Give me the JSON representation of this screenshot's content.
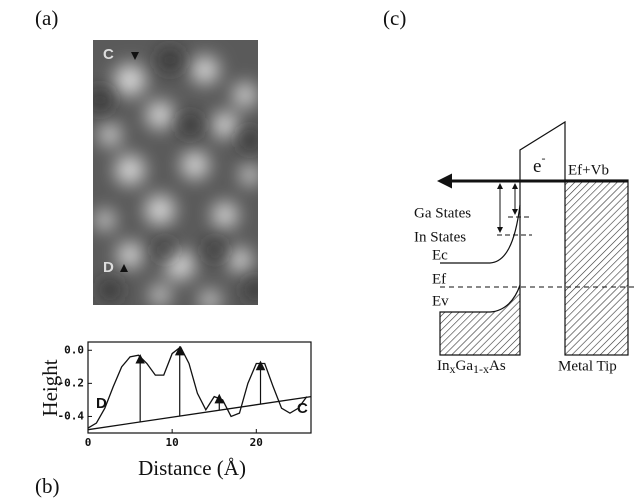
{
  "panel_a": {
    "label": "(a)",
    "marker_top": "C",
    "marker_bottom": "D"
  },
  "chart_data": {
    "type": "line",
    "panel_label": "(b)",
    "ylabel": "Height",
    "xlabel": "Distance (Å)",
    "x": [
      0,
      1,
      2,
      3,
      4,
      5,
      6,
      7,
      8,
      9,
      10,
      11,
      12,
      13,
      14,
      15,
      16,
      17,
      18,
      19,
      20,
      21,
      22,
      23,
      24,
      25,
      26
    ],
    "series": [
      {
        "color": "#111111",
        "values": [
          -0.47,
          -0.44,
          -0.35,
          -0.22,
          -0.1,
          -0.04,
          -0.03,
          -0.08,
          -0.15,
          -0.15,
          -0.02,
          0.02,
          -0.08,
          -0.26,
          -0.36,
          -0.28,
          -0.3,
          -0.4,
          -0.38,
          -0.2,
          -0.08,
          -0.08,
          -0.22,
          -0.35,
          -0.38,
          -0.35,
          -0.28
        ]
      }
    ],
    "baseline": {
      "x": [
        0,
        26.5
      ],
      "values": [
        -0.48,
        -0.28
      ]
    },
    "arrows": {
      "x": [
        6.2,
        10.9,
        15.6,
        20.5
      ],
      "values": [
        -0.03,
        0.02,
        -0.27,
        -0.07
      ]
    },
    "start_label": "D",
    "end_label": "C",
    "xlim": [
      0,
      26.5
    ],
    "ylim": [
      -0.5,
      0.05
    ],
    "xticks": [
      0,
      10,
      20
    ],
    "yticks": [
      {
        "value": 0,
        "label": "0.0"
      },
      {
        "value": -0.2,
        "label": "-0.2"
      },
      {
        "value": -0.4,
        "label": "-0.4"
      }
    ]
  },
  "panel_c": {
    "label": "(c)",
    "electron": "e",
    "electron_sup": "-",
    "tip_level": "Ef+Vb",
    "ga_states": "Ga States",
    "in_states": "In States",
    "ec": "Ec",
    "ef": "Ef",
    "ev": "Ev",
    "material": [
      "In",
      "x",
      "Ga",
      "1-x",
      "As"
    ],
    "tip": "Metal Tip"
  }
}
